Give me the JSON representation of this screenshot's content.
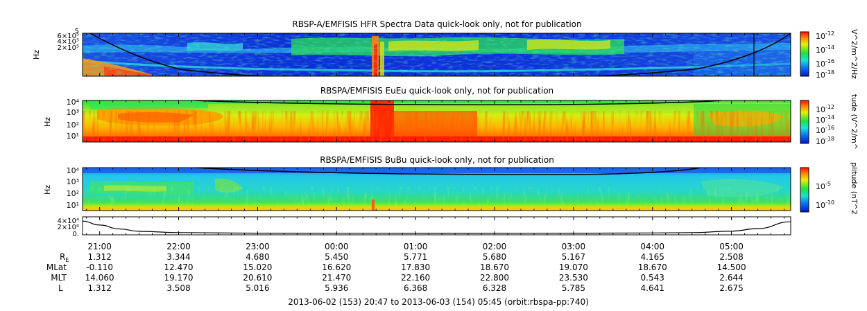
{
  "figure_title_bottom": "2013-06-02 (153) 20:47 to 2013-06-03 (154) 05:45 (orbit:rbspa-pp:740)",
  "colors": {
    "spectrogram_low": "#0a2bd6",
    "spectrogram_mid": "#18e048",
    "spectrogram_high": "#f2e600",
    "spectrogram_max": "#ff1a00",
    "trace": "#000000"
  },
  "chart_data": [
    {
      "type": "heatmap",
      "title": "RBSP-A/EMFISIS  HFR Spectra Data quick-look only, not for publication",
      "ylabel": "Hz",
      "y_ticks": [
        "6×10⁵",
        "4×10⁵",
        "2×10⁵"
      ],
      "y_top_label": "5",
      "y_scale": "log",
      "colorbar_label": "V^2/m^2/Hz",
      "colorbar_ticks": [
        "10-12",
        "10-14",
        "10-16",
        "10-18"
      ],
      "colorbar_exponents": [
        "-12",
        "-14",
        "-16",
        "-18"
      ],
      "x_range": [
        "2013-06-02T20:47",
        "2013-06-03T05:45"
      ]
    },
    {
      "type": "heatmap",
      "title": "RBSPA/EMFISIS  EuEu quick-look only, not for publication",
      "ylabel": "Hz",
      "y_ticks": [
        "10⁴",
        "10³",
        "10²",
        "10¹"
      ],
      "y_scale": "log",
      "colorbar_label": "tude (V^2/m^",
      "colorbar_ticks": [
        "10-12",
        "10-14",
        "10-16",
        "10-18"
      ],
      "colorbar_exponents": [
        "-12",
        "-14",
        "-16",
        "-18"
      ],
      "x_range": [
        "2013-06-02T20:47",
        "2013-06-03T05:45"
      ]
    },
    {
      "type": "heatmap",
      "title": "RBSPA/EMFISIS  BuBu quick-look only, not for publication",
      "ylabel": "Hz",
      "y_ticks": [
        "10⁴",
        "10³",
        "10²",
        "10¹"
      ],
      "y_scale": "log",
      "colorbar_label": "plitude (nT^2",
      "colorbar_ticks": [
        "10-5",
        "10-10"
      ],
      "colorbar_exponents": [
        "-5",
        "-10"
      ],
      "x_range": [
        "2013-06-02T20:47",
        "2013-06-03T05:45"
      ]
    },
    {
      "type": "line",
      "y_ticks": [
        "4×10⁴",
        "2×10⁴",
        "0."
      ],
      "ylim": [
        0,
        45000
      ],
      "x": [
        "20:47",
        "21:00",
        "21:15",
        "21:30",
        "22:00",
        "23:00",
        "00:00",
        "01:00",
        "02:00",
        "03:00",
        "04:00",
        "04:30",
        "05:00",
        "05:20",
        "05:45"
      ],
      "values": [
        38000,
        26000,
        14000,
        6500,
        2500,
        800,
        400,
        300,
        300,
        500,
        1500,
        2500,
        7000,
        15000,
        36000
      ]
    }
  ],
  "time_axis": {
    "labels": [
      "21:00",
      "22:00",
      "23:00",
      "00:00",
      "01:00",
      "02:00",
      "03:00",
      "04:00",
      "05:00"
    ]
  },
  "ephemeris": {
    "row_labels": [
      "R",
      "MLat",
      "MLT",
      "L"
    ],
    "re_subscript": "E",
    "rows": [
      [
        "1.312",
        "3.344",
        "4.680",
        "5.450",
        "5.771",
        "5.680",
        "5.167",
        "4.165",
        "2.508"
      ],
      [
        "-0.110",
        "12.470",
        "15.020",
        "16.620",
        "17.830",
        "18.670",
        "19.070",
        "18.670",
        "14.500"
      ],
      [
        "14.060",
        "19.170",
        "20.610",
        "21.470",
        "22.160",
        "22.800",
        "23.530",
        "0.543",
        "2.644"
      ],
      [
        "1.312",
        "3.508",
        "5.016",
        "5.936",
        "6.368",
        "6.328",
        "5.785",
        "4.641",
        "2.675"
      ]
    ]
  }
}
